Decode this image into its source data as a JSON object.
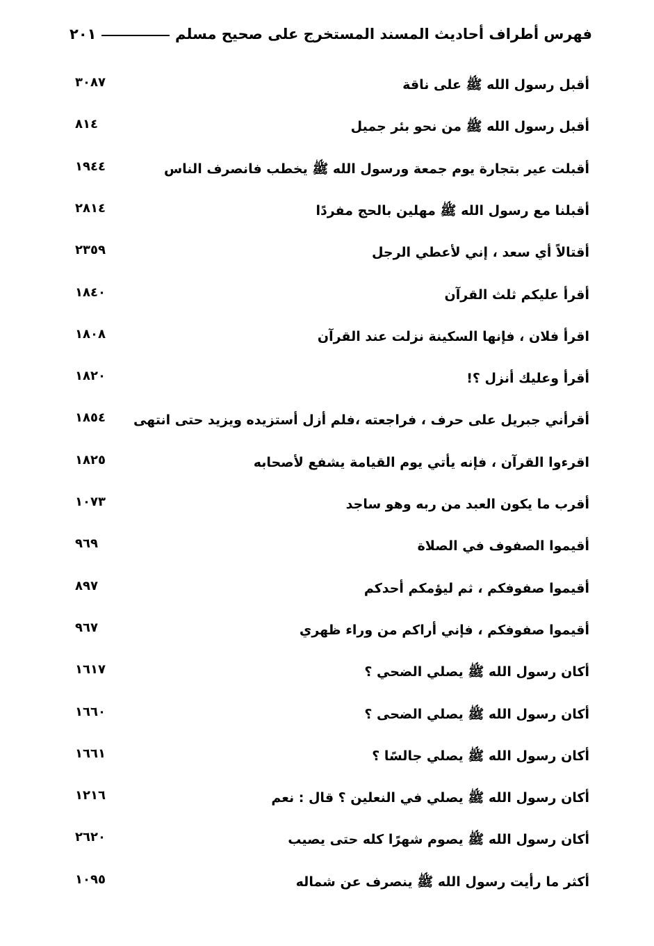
{
  "header": {
    "title": "فهرس أطراف أحاديث المسند المستخرج على صحيح مسلم",
    "page_number": "٢٠١"
  },
  "entries": [
    {
      "text": "أقبل رسول الله ﷺ على ناقة",
      "number": "٣٠٨٧"
    },
    {
      "text": "أقبل رسول الله ﷺ من نحو بئر جميل",
      "number": "٨١٤"
    },
    {
      "text": "أقبلت عير بتجارة يوم جمعة ورسول الله ﷺ يخطب فانصرف الناس",
      "number": "١٩٤٤"
    },
    {
      "text": "أقبلنا مع رسول الله ﷺ مهلين بالحج مفردًا",
      "number": "٢٨١٤"
    },
    {
      "text": "أقتالاً أي سعد ، إني لأعطي الرجل",
      "number": "٢٣٥٩"
    },
    {
      "text": "أقرأ عليكم ثلث القرآن",
      "number": "١٨٤٠"
    },
    {
      "text": "اقرأ فلان ، فإنها السكينة نزلت عند القرآن",
      "number": "١٨٠٨"
    },
    {
      "text": "أقرأ وعليك أنزل ؟!",
      "number": "١٨٢٠"
    },
    {
      "text": "أقرأني جبريل على حرف ، فراجعته ،فلم أزل أستزيده ويزيد حتى انتهى",
      "number": "١٨٥٤"
    },
    {
      "text": "اقرءوا القرآن ، فإنه يأتي يوم القيامة يشفع لأصحابه",
      "number": "١٨٢٥"
    },
    {
      "text": "أقرب ما يكون العبد من ربه وهو ساجد",
      "number": "١٠٧٣"
    },
    {
      "text": "أقيموا الصفوف في الصلاة",
      "number": "٩٦٩"
    },
    {
      "text": "أقيموا صفوفكم ، ثم ليؤمكم أحدكم",
      "number": "٨٩٧"
    },
    {
      "text": "أقيموا صفوفكم ، فإني أراكم من وراء ظهري",
      "number": "٩٦٧"
    },
    {
      "text": "أكان رسول الله ﷺ يصلي الضحي ؟",
      "number": "١٦١٧"
    },
    {
      "text": "أكان رسول الله ﷺ يصلي الضحى ؟",
      "number": "١٦٦٠"
    },
    {
      "text": "أكان رسول الله ﷺ يصلي جالسًا ؟",
      "number": "١٦٦١"
    },
    {
      "text": "أكان رسول الله ﷺ يصلي في النعلين ؟ قال : نعم",
      "number": "١٢١٦"
    },
    {
      "text": "أكان رسول الله ﷺ يصوم شهرًا كله حتى يصيب",
      "number": "٢٦٢٠"
    },
    {
      "text": "أكثر ما رأيت رسول الله ﷺ ينصرف عن شماله",
      "number": "١٠٩٥"
    }
  ]
}
